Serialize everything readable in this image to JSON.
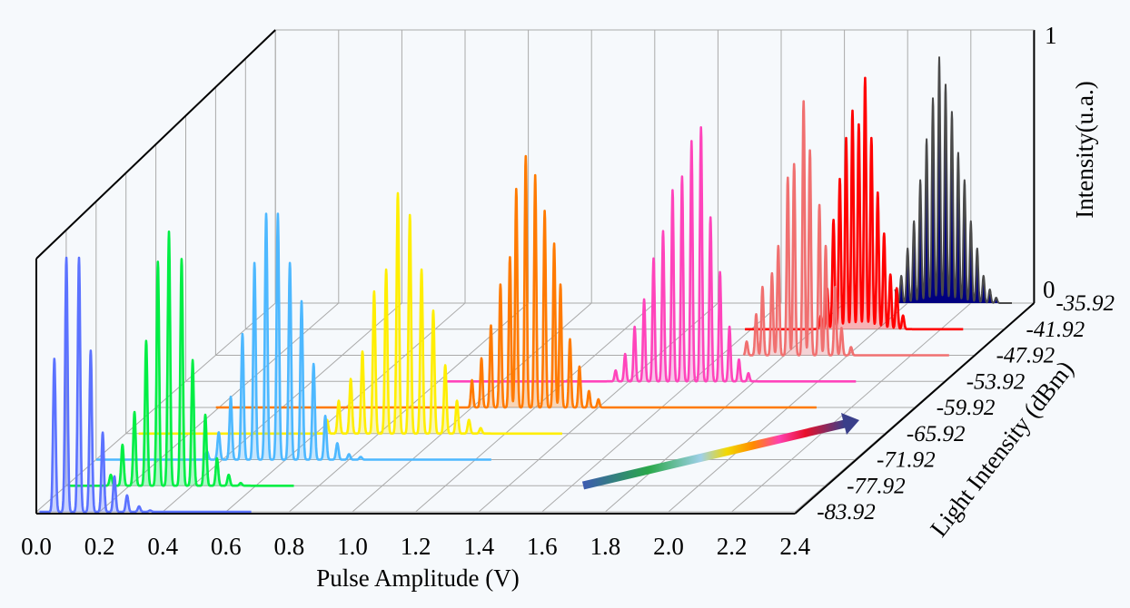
{
  "chart_data": {
    "type": "line",
    "style": "3d-waterfall",
    "xlabel": "Pulse Amplitude (V)",
    "ylabel": "Light Intensity (dBm)",
    "zlabel": "Intensity(u.a.)",
    "xlim": [
      0,
      2.4
    ],
    "x_ticks": [
      "0.0",
      "0.2",
      "0.4",
      "0.6",
      "0.8",
      "1.0",
      "1.2",
      "1.4",
      "1.6",
      "1.8",
      "2.0",
      "2.2",
      "2.4"
    ],
    "zlim": [
      0,
      1
    ],
    "z_ticks": [
      "0",
      "1"
    ],
    "y_ticks": [
      "-83.92",
      "-77.92",
      "-71.92",
      "-65.92",
      "-59.92",
      "-53.92",
      "-47.92",
      "-41.92",
      "-35.92"
    ],
    "grid": true,
    "arrow_note": "gradient arrow indicating increasing light intensity",
    "series": [
      {
        "name": "-83.92",
        "color": "#5b72ff",
        "range": [
          0.01,
          0.68
        ],
        "peaks": [
          [
            0.057,
            0.56
          ],
          [
            0.095,
            0.93
          ],
          [
            0.135,
            0.93
          ],
          [
            0.172,
            0.59
          ],
          [
            0.21,
            0.29
          ],
          [
            0.247,
            0.13
          ],
          [
            0.287,
            0.06
          ],
          [
            0.325,
            0.02
          ],
          [
            0.36,
            0.005
          ]
        ]
      },
      {
        "name": "-77.92",
        "color": "#00ee44",
        "range": [
          0.01,
          0.72
        ],
        "peaks": [
          [
            0.141,
            0.04
          ],
          [
            0.178,
            0.15
          ],
          [
            0.216,
            0.27
          ],
          [
            0.253,
            0.53
          ],
          [
            0.29,
            0.82
          ],
          [
            0.325,
            0.93
          ],
          [
            0.365,
            0.83
          ],
          [
            0.4,
            0.46
          ],
          [
            0.44,
            0.26
          ],
          [
            0.477,
            0.1
          ],
          [
            0.514,
            0.04
          ],
          [
            0.552,
            0.01
          ]
        ]
      },
      {
        "name": "-71.92",
        "color": "#4db8ff",
        "range": [
          0.0,
          1.25
        ],
        "peaks": [
          [
            0.351,
            0.03
          ],
          [
            0.388,
            0.1
          ],
          [
            0.426,
            0.23
          ],
          [
            0.463,
            0.46
          ],
          [
            0.501,
            0.72
          ],
          [
            0.538,
            0.9
          ],
          [
            0.575,
            0.9
          ],
          [
            0.613,
            0.72
          ],
          [
            0.65,
            0.58
          ],
          [
            0.688,
            0.35
          ],
          [
            0.725,
            0.16
          ],
          [
            0.763,
            0.06
          ],
          [
            0.8,
            0.02
          ],
          [
            0.837,
            0.01
          ]
        ]
      },
      {
        "name": "-65.92",
        "color": "#ffee00",
        "range": [
          0.04,
          1.38
        ],
        "peaks": [
          [
            0.636,
            0.05
          ],
          [
            0.673,
            0.12
          ],
          [
            0.711,
            0.2
          ],
          [
            0.748,
            0.3
          ],
          [
            0.785,
            0.52
          ],
          [
            0.823,
            0.6
          ],
          [
            0.86,
            0.88
          ],
          [
            0.898,
            0.8
          ],
          [
            0.935,
            0.6
          ],
          [
            0.972,
            0.45
          ],
          [
            1.01,
            0.25
          ],
          [
            1.047,
            0.12
          ],
          [
            1.085,
            0.05
          ],
          [
            1.122,
            0.02
          ]
        ]
      },
      {
        "name": "-59.92",
        "color": "#ff7a00",
        "range": [
          0.19,
          2.09
        ],
        "peaks": [
          [
            1.0,
            0.1
          ],
          [
            1.03,
            0.18
          ],
          [
            1.06,
            0.3
          ],
          [
            1.09,
            0.45
          ],
          [
            1.12,
            0.55
          ],
          [
            1.14,
            0.8
          ],
          [
            1.17,
            0.92
          ],
          [
            1.2,
            0.85
          ],
          [
            1.23,
            0.72
          ],
          [
            1.26,
            0.6
          ],
          [
            1.28,
            0.45
          ],
          [
            1.31,
            0.25
          ],
          [
            1.34,
            0.15
          ],
          [
            1.37,
            0.06
          ],
          [
            1.4,
            0.03
          ]
        ]
      },
      {
        "name": "-53.92",
        "color": "#ff44bb",
        "range": [
          0.82,
          2.12
        ],
        "peaks": [
          [
            1.36,
            0.04
          ],
          [
            1.39,
            0.1
          ],
          [
            1.42,
            0.2
          ],
          [
            1.45,
            0.3
          ],
          [
            1.48,
            0.45
          ],
          [
            1.51,
            0.55
          ],
          [
            1.54,
            0.7
          ],
          [
            1.57,
            0.75
          ],
          [
            1.6,
            0.88
          ],
          [
            1.63,
            0.93
          ],
          [
            1.66,
            0.6
          ],
          [
            1.69,
            0.4
          ],
          [
            1.72,
            0.2
          ],
          [
            1.75,
            0.08
          ],
          [
            1.78,
            0.03
          ]
        ]
      },
      {
        "name": "-47.92",
        "color": "#f07070",
        "range": [
          1.67,
          2.32
        ],
        "peaks": [
          [
            1.68,
            0.05
          ],
          [
            1.71,
            0.15
          ],
          [
            1.73,
            0.25
          ],
          [
            1.76,
            0.3
          ],
          [
            1.78,
            0.4
          ],
          [
            1.81,
            0.65
          ],
          [
            1.83,
            0.7
          ],
          [
            1.86,
            0.93
          ],
          [
            1.88,
            0.75
          ],
          [
            1.91,
            0.55
          ],
          [
            1.93,
            0.4
          ],
          [
            1.96,
            0.25
          ],
          [
            1.98,
            0.1
          ],
          [
            2.01,
            0.03
          ]
        ]
      },
      {
        "name": "-41.92",
        "color": "#ff0000",
        "range": [
          1.58,
          2.27
        ],
        "peaks": [
          [
            1.82,
            0.05
          ],
          [
            1.84,
            0.15
          ],
          [
            1.86,
            0.4
          ],
          [
            1.88,
            0.55
          ],
          [
            1.9,
            0.7
          ],
          [
            1.92,
            0.8
          ],
          [
            1.94,
            0.75
          ],
          [
            1.96,
            0.92
          ],
          [
            1.98,
            0.7
          ],
          [
            2.0,
            0.5
          ],
          [
            2.02,
            0.35
          ],
          [
            2.04,
            0.2
          ],
          [
            2.06,
            0.15
          ],
          [
            2.08,
            0.05
          ]
        ]
      },
      {
        "name": "-35.92",
        "color": "#000080",
        "stroke": "#4a4a4a",
        "range": [
          1.96,
          2.33
        ],
        "peaks": [
          [
            1.96,
            0.05
          ],
          [
            1.98,
            0.1
          ],
          [
            2.0,
            0.2
          ],
          [
            2.02,
            0.3
          ],
          [
            2.04,
            0.45
          ],
          [
            2.06,
            0.6
          ],
          [
            2.08,
            0.75
          ],
          [
            2.1,
            0.9
          ],
          [
            2.12,
            0.8
          ],
          [
            2.14,
            0.7
          ],
          [
            2.16,
            0.55
          ],
          [
            2.18,
            0.45
          ],
          [
            2.2,
            0.3
          ],
          [
            2.22,
            0.2
          ],
          [
            2.24,
            0.1
          ],
          [
            2.26,
            0.05
          ],
          [
            2.28,
            0.02
          ]
        ]
      }
    ]
  }
}
